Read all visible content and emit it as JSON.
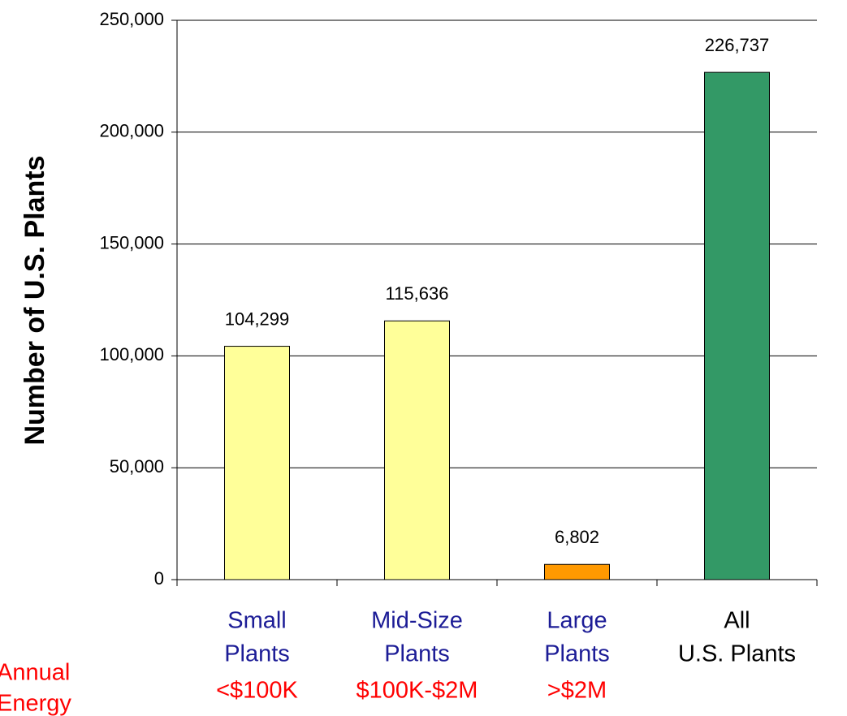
{
  "chart_data": {
    "type": "bar",
    "y_axis_label": "Number of U.S. Plants",
    "categories": [
      [
        "Small",
        "Plants"
      ],
      [
        "Mid-Size",
        "Plants"
      ],
      [
        "Large",
        "Plants"
      ],
      [
        "All",
        "U.S. Plants"
      ]
    ],
    "category_colors": [
      "#1c1c96",
      "#1c1c96",
      "#1c1c96",
      "#000000"
    ],
    "cost_title": [
      "Annual",
      "Energy"
    ],
    "cost_labels": [
      "<$100K",
      "$100K-$2M",
      ">$2M"
    ],
    "cost_color": "#ff0000",
    "values": [
      104299,
      115636,
      6802,
      226737
    ],
    "value_labels": [
      "104,299",
      "115,636",
      "6,802",
      "226,737"
    ],
    "colors": [
      "#ffff99",
      "#ffff99",
      "#ff9900",
      "#339966"
    ],
    "ylim": [
      0,
      250000
    ],
    "yticks": [
      0,
      {
        "value": 50000,
        "label": "50,000"
      },
      {
        "value": 100000,
        "label": "100,000"
      },
      {
        "value": 150000,
        "label": "150,000"
      },
      {
        "value": 200000,
        "label": "200,000"
      },
      {
        "value": 250000,
        "label": "250,000"
      }
    ],
    "grid": true
  }
}
